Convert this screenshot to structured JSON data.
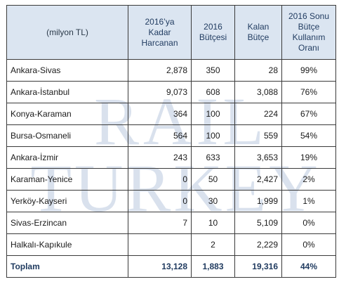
{
  "watermark": {
    "line1": "RAIL",
    "line2": "TURKEY"
  },
  "table": {
    "headers": {
      "unit": "(milyon TL)",
      "spent": [
        "2016’ya",
        "Kadar",
        "Harcanan"
      ],
      "budget": [
        "2016",
        "Bütçesi"
      ],
      "remaining": [
        "Kalan",
        "Bütçe"
      ],
      "usage_rate": [
        "2016 Sonu",
        "Bütçe",
        "Kullanım",
        "Oranı"
      ]
    },
    "rows": [
      {
        "route": "Ankara-Sivas",
        "spent": "2,878",
        "budget": "350",
        "remaining": "28",
        "rate": "99%"
      },
      {
        "route": "Ankara-İstanbul",
        "spent": "9,073",
        "budget": "608",
        "remaining": "3,088",
        "rate": "76%"
      },
      {
        "route": "Konya-Karaman",
        "spent": "364",
        "budget": "100",
        "remaining": "224",
        "rate": "67%"
      },
      {
        "route": "Bursa-Osmaneli",
        "spent": "564",
        "budget": "100",
        "remaining": "559",
        "rate": "54%"
      },
      {
        "route": "Ankara-İzmir",
        "spent": "243",
        "budget": "633",
        "remaining": "3,653",
        "rate": "19%"
      },
      {
        "route": "Karaman-Yenice",
        "spent": "0",
        "budget": "50",
        "remaining": "2,427",
        "rate": "2%"
      },
      {
        "route": "Yerköy-Kayseri",
        "spent": "0",
        "budget": "30",
        "remaining": "1,999",
        "rate": "1%"
      },
      {
        "route": "Sivas-Erzincan",
        "spent": "7",
        "budget": "10",
        "remaining": "5,109",
        "rate": "0%"
      },
      {
        "route": "Halkalı-Kapıkule",
        "spent": "",
        "budget": "2",
        "remaining": "2,229",
        "rate": "0%"
      }
    ],
    "total": {
      "route": "Toplam",
      "spent": "13,128",
      "budget": "1,883",
      "remaining": "19,316",
      "rate": "44%"
    }
  },
  "colors": {
    "header_bg": "#dbe5f1",
    "header_text": "#1f3a5f",
    "watermark": "#b9c8de"
  }
}
